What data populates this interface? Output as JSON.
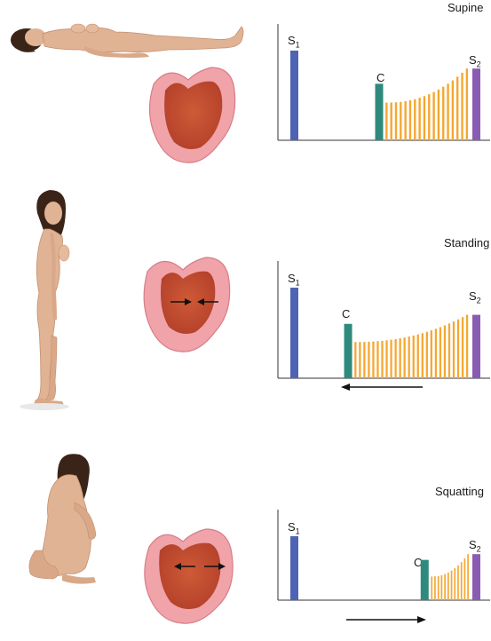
{
  "colors": {
    "s1": "#4f63b5",
    "c": "#2e8a7c",
    "murmur": "#f5a731",
    "s2": "#8a5bb3",
    "axis": "#333333",
    "heart_outer": "#f0a3a9",
    "heart_inner": "#c44a2e",
    "skin": "#e0b394",
    "hair": "#3a2418"
  },
  "icons": [
    "figure-supine-icon",
    "figure-standing-icon",
    "figure-squatting-icon",
    "heart-cross-section-icon",
    "arrow-icon"
  ],
  "panels": [
    {
      "title": "Supine",
      "s1_label": "S",
      "s1_sub": "1",
      "c_label": "C",
      "s2_label": "S",
      "s2_sub": "2",
      "arrow": "none",
      "heart_arrows": "none"
    },
    {
      "title": "Standing",
      "s1_label": "S",
      "s1_sub": "1",
      "c_label": "C",
      "s2_label": "S",
      "s2_sub": "2",
      "arrow": "left",
      "heart_arrows": "inward"
    },
    {
      "title": "Squatting",
      "s1_label": "S",
      "s1_sub": "1",
      "c_label": "C",
      "s2_label": "S",
      "s2_sub": "2",
      "arrow": "right",
      "heart_arrows": "outward"
    }
  ],
  "chart_data": [
    {
      "type": "bar",
      "title": "Supine",
      "click_position": 0.47,
      "murmur_start": 0.52,
      "murmur_bars": 18,
      "murmur_level_start": 0.42,
      "murmur_level_end": 0.8,
      "s1_level": 1.0,
      "c_level": 0.63,
      "s2_level": 0.8
    },
    {
      "type": "bar",
      "title": "Standing",
      "click_position": 0.32,
      "murmur_start": 0.37,
      "murmur_bars": 26,
      "murmur_level_start": 0.4,
      "murmur_level_end": 0.7,
      "s1_level": 1.0,
      "c_level": 0.6,
      "s2_level": 0.7
    },
    {
      "type": "bar",
      "title": "Squatting",
      "click_position": 0.69,
      "murmur_start": 0.74,
      "murmur_bars": 12,
      "murmur_level_start": 0.37,
      "murmur_level_end": 0.72,
      "s1_level": 1.0,
      "c_level": 0.63,
      "s2_level": 0.72
    }
  ]
}
